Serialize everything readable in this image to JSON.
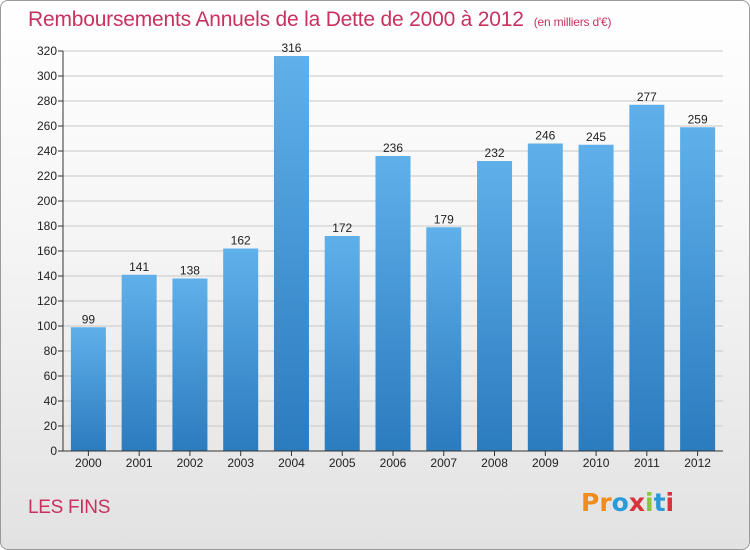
{
  "header": {
    "title": "Remboursements Annuels de la Dette de 2000 à 2012",
    "subtitle": "(en milliers d'€)"
  },
  "footer": {
    "city": "LES FINS",
    "logo": "Proxiti"
  },
  "logo_colors": [
    "#f28c1c",
    "#f28c1c",
    "#2a9ad8",
    "#d8323c",
    "#8cc43c",
    "#2a9ad8",
    "#d8323c"
  ],
  "colors": {
    "bar_top": "#5fb0ea",
    "bar_bottom": "#2b7bbf",
    "grid": "#c8c8c8",
    "axis": "#333333",
    "title": "#c8325f"
  },
  "chart_data": {
    "type": "bar",
    "title": "Remboursements Annuels de la Dette de 2000 à 2012",
    "subtitle": "(en milliers d'€)",
    "categories": [
      "2000",
      "2001",
      "2002",
      "2003",
      "2004",
      "2005",
      "2006",
      "2007",
      "2008",
      "2009",
      "2010",
      "2011",
      "2012"
    ],
    "values": [
      99,
      141,
      138,
      162,
      316,
      172,
      236,
      179,
      232,
      246,
      245,
      277,
      259
    ],
    "ylim": [
      0,
      320
    ],
    "yticks": [
      0,
      20,
      40,
      60,
      80,
      100,
      120,
      140,
      160,
      180,
      200,
      220,
      240,
      260,
      280,
      300,
      320
    ],
    "grid": true
  }
}
